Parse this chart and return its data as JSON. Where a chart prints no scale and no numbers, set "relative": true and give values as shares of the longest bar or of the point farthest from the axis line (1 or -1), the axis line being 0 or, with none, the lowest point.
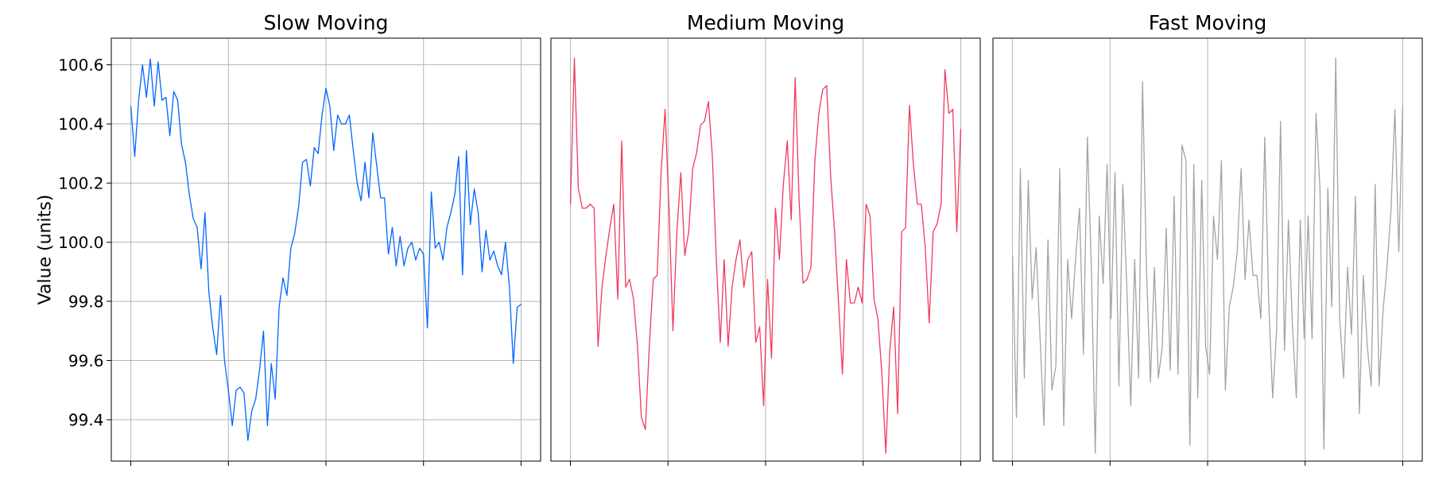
{
  "chart_data": [
    {
      "type": "line",
      "title": "Slow Moving",
      "ylabel": "Value (units)",
      "color": "#0066ff",
      "grid": true,
      "tick_labels": "y",
      "ylim": [
        99.26,
        100.69
      ],
      "yticks": [
        99.4,
        99.6,
        99.8,
        {
          "value": 100.0,
          "label": "100.0"
        },
        100.2,
        100.4,
        100.6
      ],
      "categories": [
        null,
        null,
        null,
        null,
        null,
        null,
        null,
        null,
        null,
        null,
        null,
        null,
        null,
        null,
        null,
        null,
        null,
        null,
        null,
        null,
        null,
        null,
        null,
        null,
        null,
        null,
        null,
        null,
        null,
        null,
        null,
        null,
        null,
        null,
        null,
        null,
        null,
        null,
        null,
        null,
        null,
        null,
        null,
        null,
        null,
        null,
        null,
        null,
        null,
        null,
        null,
        null,
        null,
        null,
        null,
        null,
        null,
        null,
        null,
        null,
        null,
        null,
        null,
        null,
        null,
        null,
        null,
        null,
        null,
        null,
        null,
        null,
        null,
        null,
        null,
        null,
        null,
        null,
        null,
        null,
        null,
        null,
        null,
        null,
        null,
        null,
        null,
        null,
        null,
        null,
        null,
        null,
        null,
        null,
        null,
        null,
        null,
        null,
        null,
        null,
        null
      ],
      "values": [
        100.46,
        100.29,
        100.48,
        100.6,
        100.49,
        100.62,
        100.46,
        100.61,
        100.48,
        100.49,
        100.36,
        100.51,
        100.48,
        100.33,
        100.27,
        100.16,
        100.08,
        100.05,
        99.91,
        100.1,
        99.83,
        99.71,
        99.62,
        99.82,
        99.6,
        99.5,
        99.38,
        99.5,
        99.51,
        99.49,
        99.33,
        99.43,
        99.47,
        99.57,
        99.7,
        99.38,
        99.59,
        99.47,
        99.78,
        99.88,
        99.82,
        99.98,
        100.03,
        100.12,
        100.27,
        100.28,
        100.19,
        100.32,
        100.3,
        100.43,
        100.52,
        100.46,
        100.31,
        100.43,
        100.4,
        100.4,
        100.43,
        100.31,
        100.2,
        100.14,
        100.27,
        100.15,
        100.37,
        100.26,
        100.15,
        100.15,
        99.96,
        100.05,
        99.92,
        100.02,
        99.92,
        99.98,
        100.0,
        99.94,
        99.98,
        99.96,
        99.71,
        100.17,
        99.98,
        100.0,
        99.94,
        100.05,
        100.1,
        100.16,
        100.29,
        99.89,
        100.31,
        100.06,
        100.18,
        100.1,
        99.9,
        100.04,
        99.94,
        99.97,
        99.92,
        99.89,
        100.0,
        99.85,
        99.59,
        99.78,
        99.79
      ]
    },
    {
      "type": "line",
      "title": "Medium Moving",
      "color": "#f03a5f",
      "grid": true,
      "tick_labels": false,
      "relative": true,
      "categories": [
        null,
        null,
        null,
        null,
        null,
        null,
        null,
        null,
        null,
        null,
        null,
        null,
        null,
        null,
        null,
        null,
        null,
        null,
        null,
        null,
        null,
        null,
        null,
        null,
        null,
        null,
        null,
        null,
        null,
        null,
        null,
        null,
        null,
        null,
        null,
        null,
        null,
        null,
        null,
        null,
        null,
        null,
        null,
        null,
        null,
        null,
        null,
        null,
        null,
        null,
        null,
        null,
        null,
        null,
        null,
        null,
        null,
        null,
        null,
        null,
        null,
        null,
        null,
        null,
        null,
        null,
        null,
        null,
        null,
        null,
        null,
        null,
        null,
        null,
        null,
        null,
        null,
        null,
        null,
        null,
        null,
        null,
        null,
        null,
        null,
        null,
        null,
        null,
        null,
        null,
        null,
        null,
        null,
        null,
        null,
        null,
        null,
        null,
        null,
        null
      ],
      "values": [
        0.63,
        1.0,
        0.67,
        0.62,
        0.62,
        0.63,
        0.62,
        0.27,
        0.42,
        0.5,
        0.57,
        0.63,
        0.39,
        0.79,
        0.42,
        0.44,
        0.39,
        0.27,
        0.09,
        0.06,
        0.27,
        0.44,
        0.45,
        0.71,
        0.87,
        0.62,
        0.31,
        0.56,
        0.71,
        0.5,
        0.56,
        0.72,
        0.76,
        0.83,
        0.84,
        0.89,
        0.75,
        0.49,
        0.28,
        0.49,
        0.27,
        0.42,
        0.49,
        0.54,
        0.42,
        0.49,
        0.51,
        0.28,
        0.32,
        0.12,
        0.44,
        0.24,
        0.62,
        0.49,
        0.68,
        0.79,
        0.59,
        0.95,
        0.64,
        0.43,
        0.44,
        0.47,
        0.74,
        0.86,
        0.92,
        0.93,
        0.7,
        0.56,
        0.38,
        0.2,
        0.49,
        0.38,
        0.38,
        0.42,
        0.38,
        0.63,
        0.6,
        0.39,
        0.34,
        0.2,
        0.0,
        0.26,
        0.37,
        0.1,
        0.56,
        0.57,
        0.88,
        0.73,
        0.63,
        0.63,
        0.52,
        0.33,
        0.56,
        0.58,
        0.63,
        0.97,
        0.86,
        0.87,
        0.56,
        0.82
      ]
    },
    {
      "type": "line",
      "title": "Fast Moving",
      "color": "#a0a4a8",
      "grid": true,
      "tick_labels": false,
      "relative": true,
      "categories": [
        null,
        null,
        null,
        null,
        null,
        null,
        null,
        null,
        null,
        null,
        null,
        null,
        null,
        null,
        null,
        null,
        null,
        null,
        null,
        null,
        null,
        null,
        null,
        null,
        null,
        null,
        null,
        null,
        null,
        null,
        null,
        null,
        null,
        null,
        null,
        null,
        null,
        null,
        null,
        null,
        null,
        null,
        null,
        null,
        null,
        null,
        null,
        null,
        null,
        null,
        null,
        null,
        null,
        null,
        null,
        null,
        null,
        null,
        null,
        null,
        null,
        null,
        null,
        null,
        null,
        null,
        null,
        null,
        null,
        null,
        null,
        null,
        null,
        null,
        null,
        null,
        null,
        null,
        null,
        null,
        null,
        null,
        null,
        null,
        null,
        null,
        null,
        null,
        null,
        null,
        null,
        null,
        null,
        null,
        null,
        null,
        null,
        null,
        null,
        null
      ],
      "values": [
        0.5,
        0.09,
        0.72,
        0.19,
        0.69,
        0.39,
        0.52,
        0.29,
        0.07,
        0.54,
        0.16,
        0.22,
        0.72,
        0.07,
        0.49,
        0.34,
        0.49,
        0.62,
        0.25,
        0.8,
        0.47,
        0.0,
        0.6,
        0.43,
        0.73,
        0.34,
        0.71,
        0.17,
        0.68,
        0.42,
        0.12,
        0.49,
        0.19,
        0.94,
        0.46,
        0.18,
        0.47,
        0.19,
        0.27,
        0.57,
        0.21,
        0.65,
        0.2,
        0.78,
        0.74,
        0.02,
        0.73,
        0.14,
        0.69,
        0.27,
        0.2,
        0.6,
        0.49,
        0.74,
        0.16,
        0.37,
        0.42,
        0.51,
        0.72,
        0.44,
        0.59,
        0.45,
        0.45,
        0.34,
        0.8,
        0.38,
        0.14,
        0.31,
        0.84,
        0.26,
        0.59,
        0.33,
        0.14,
        0.59,
        0.29,
        0.6,
        0.29,
        0.86,
        0.67,
        0.01,
        0.67,
        0.37,
        1.0,
        0.34,
        0.19,
        0.47,
        0.3,
        0.65,
        0.1,
        0.45,
        0.27,
        0.17,
        0.68,
        0.17,
        0.36,
        0.47,
        0.61,
        0.87,
        0.51,
        0.88
      ]
    }
  ]
}
